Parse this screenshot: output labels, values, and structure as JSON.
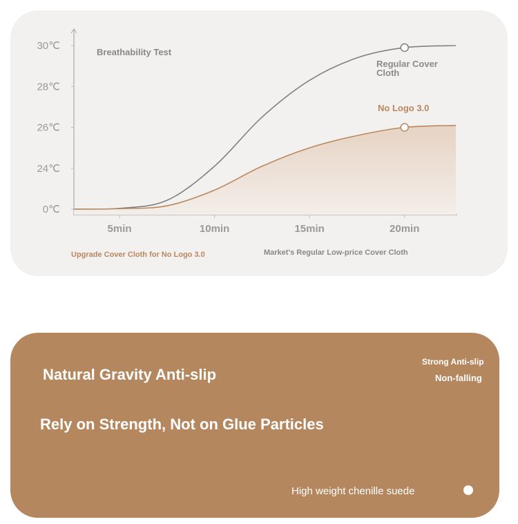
{
  "chart_data": {
    "type": "line",
    "title": "Breathability Test",
    "x": [
      2.6,
      5,
      7.5,
      10,
      12.5,
      15,
      17.5,
      20,
      22.7
    ],
    "xlim": [
      2.6,
      22.7
    ],
    "xticks": [
      {
        "value": 5,
        "label": "5min"
      },
      {
        "value": 10,
        "label": "10min"
      },
      {
        "value": 15,
        "label": "15min"
      },
      {
        "value": 20,
        "label": "20min"
      }
    ],
    "yticks": [
      {
        "value": 0,
        "label": "0℃"
      },
      {
        "value": 24,
        "label": "24℃"
      },
      {
        "value": 26,
        "label": "26℃"
      },
      {
        "value": 28,
        "label": "28℃"
      },
      {
        "value": 30,
        "label": "30℃"
      }
    ],
    "series": [
      {
        "name": "Regular Cover Cloth",
        "color": "#808080",
        "values": [
          0,
          0.5,
          5.2,
          24.1,
          26.5,
          28.3,
          29.4,
          29.9,
          30
        ]
      },
      {
        "name": "No Logo 3.0",
        "color": "#b9875f",
        "values": [
          0,
          0.3,
          2,
          11.2,
          24.1,
          25,
          25.6,
          26,
          26.1
        ]
      }
    ],
    "captions": [
      "Upgrade Cover Cloth for No Logo 3.0",
      "Market's Regular Low-price Cover Cloth"
    ]
  },
  "banner": {
    "tags": [
      "Strong Anti-slip",
      "Non-falling"
    ],
    "headline": "Natural Gravity Anti-slip",
    "subheadline": "Rely on Strength, Not on Glue Particles",
    "feature": "High weight chenille suede"
  }
}
